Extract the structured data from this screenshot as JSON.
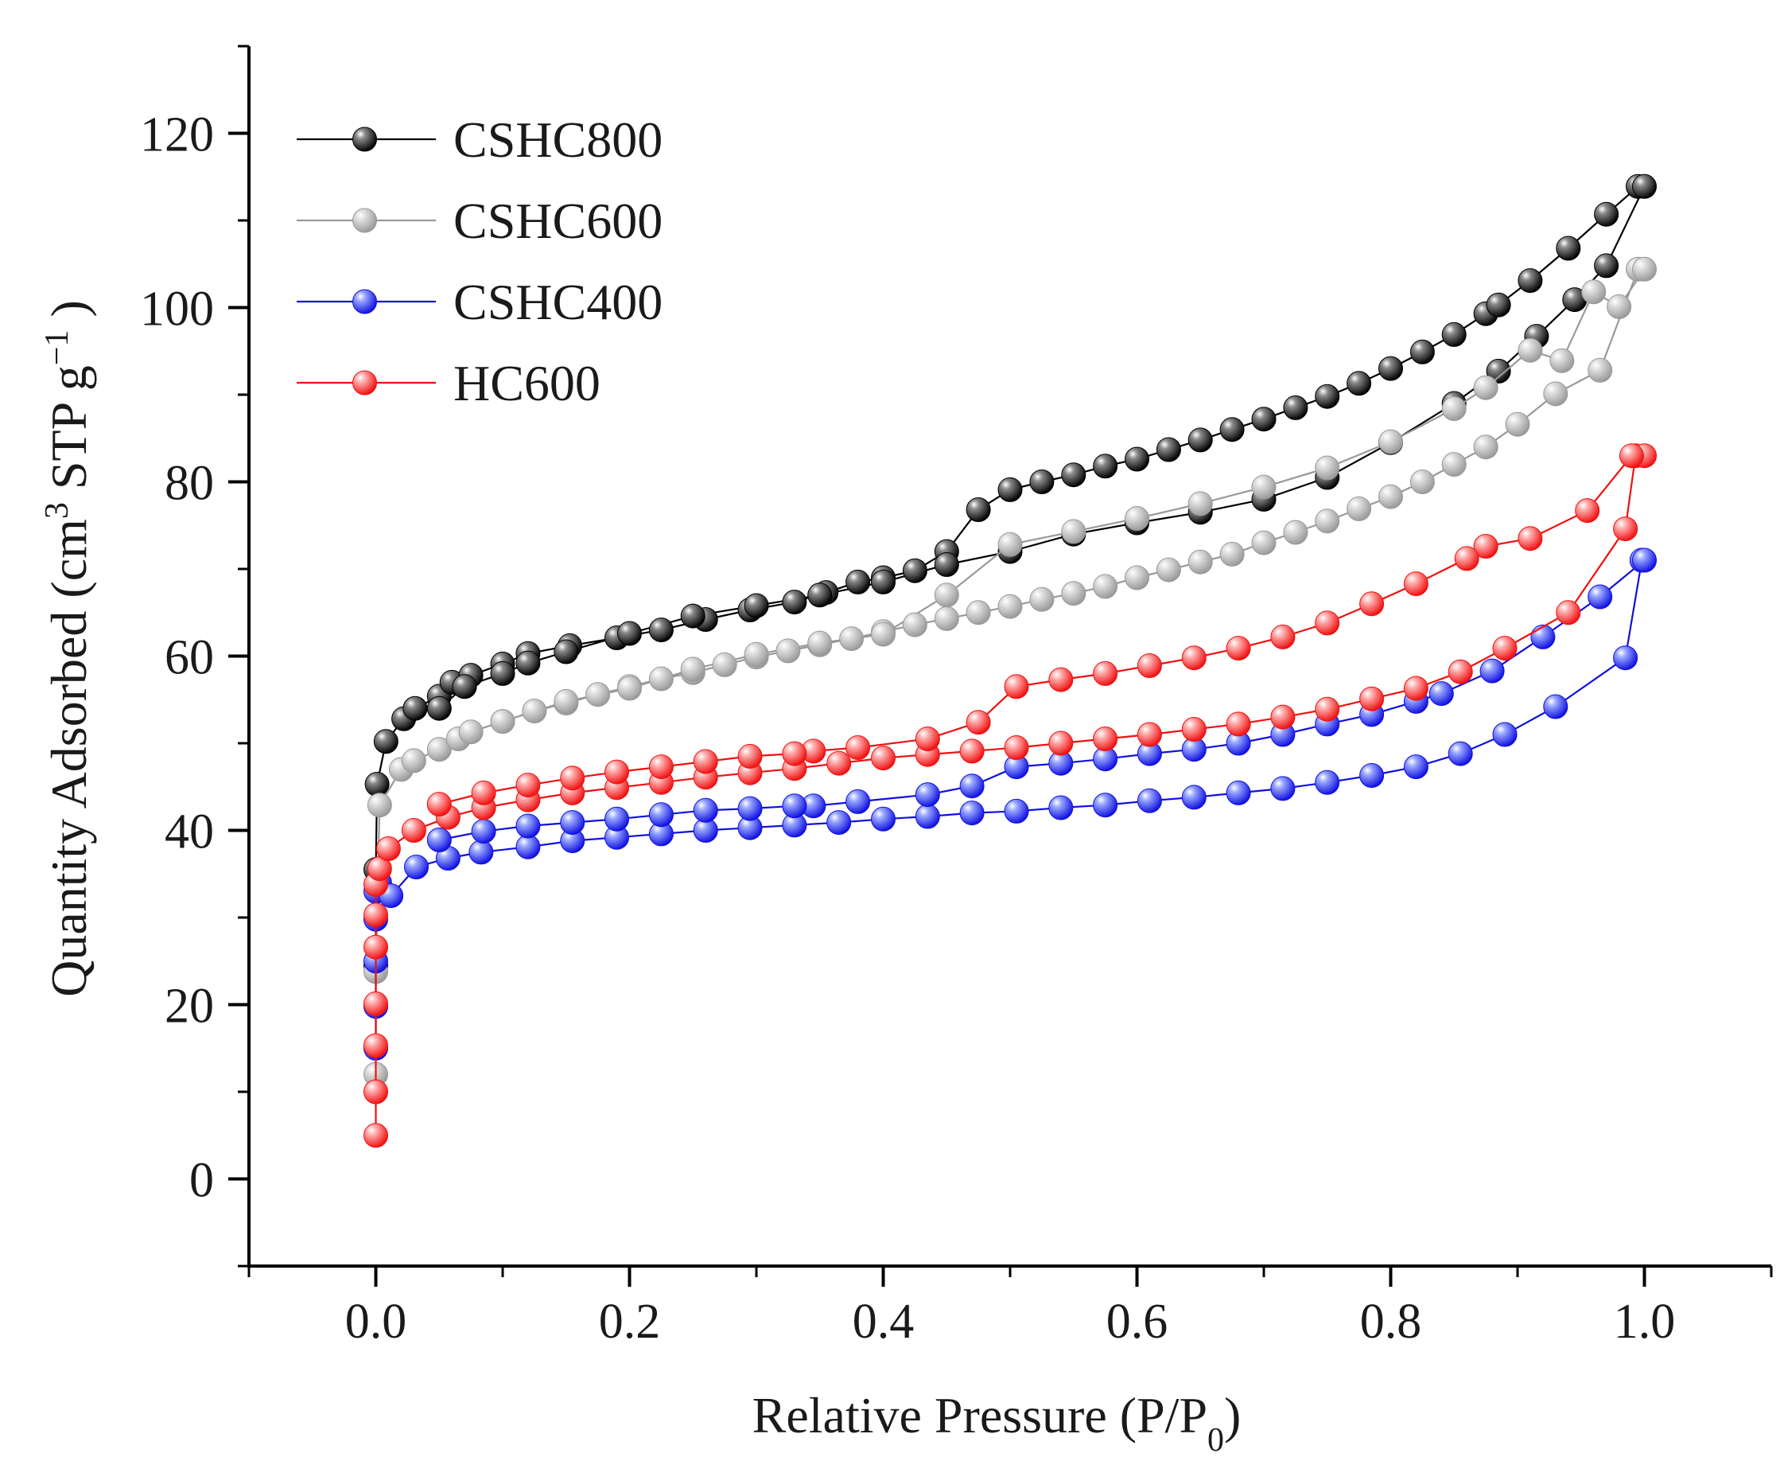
{
  "chart_data": {
    "type": "scatter",
    "title": "",
    "xlabel": "Relative Pressure (P/P0)",
    "xlabel_parts": {
      "main": "Relative Pressure (P/P",
      "sub": "0",
      "end": ")"
    },
    "ylabel": "Quantity Adsorbed (cm3 STP g-1)",
    "ylabel_parts": {
      "main": "Quantity Adsorbed (cm",
      "sup1": "3",
      "mid": " STP g",
      "sup2": "−1",
      "end": " )"
    },
    "xlim": [
      -0.1,
      1.1
    ],
    "ylim": [
      -10,
      130
    ],
    "xticks": [
      0.0,
      0.2,
      0.4,
      0.6,
      0.8,
      1.0
    ],
    "xtick_labels": [
      "0.0",
      "0.2",
      "0.4",
      "0.6",
      "0.8",
      "1.0"
    ],
    "yticks": [
      0,
      20,
      40,
      60,
      80,
      100,
      120
    ],
    "ytick_labels": [
      "0",
      "20",
      "40",
      "60",
      "80",
      "100",
      "120"
    ],
    "grid": false,
    "legend_position": "top-left",
    "series": [
      {
        "name": "CSHC800",
        "color": "#000000",
        "highlight": "#8a8a8a",
        "x": [
          0.0,
          0.0,
          0.001,
          0.008,
          0.022,
          0.031,
          0.05,
          0.06,
          0.075,
          0.1,
          0.12,
          0.153,
          0.19,
          0.225,
          0.26,
          0.295,
          0.33,
          0.355,
          0.38,
          0.4,
          0.425,
          0.45,
          0.475,
          0.5,
          0.525,
          0.55,
          0.575,
          0.6,
          0.625,
          0.65,
          0.675,
          0.7,
          0.725,
          0.75,
          0.775,
          0.8,
          0.825,
          0.85,
          0.875,
          0.885,
          0.91,
          0.94,
          0.97,
          0.995,
          1.0,
          0.97,
          0.945,
          0.915,
          0.885,
          0.85,
          0.8,
          0.75,
          0.7,
          0.65,
          0.6,
          0.55,
          0.5,
          0.45,
          0.4,
          0.35,
          0.3,
          0.25,
          0.2,
          0.15,
          0.12,
          0.1,
          0.07,
          0.05
        ],
        "values": [
          24.5,
          35.5,
          45.3,
          50.2,
          52.8,
          54.0,
          55.4,
          57.0,
          57.8,
          59.1,
          60.3,
          61.2,
          62.1,
          63.0,
          64.2,
          65.3,
          66.2,
          67.3,
          68.5,
          69.0,
          69.8,
          72.0,
          76.8,
          79.1,
          80.0,
          80.8,
          81.8,
          82.6,
          83.7,
          84.8,
          86.0,
          87.2,
          88.5,
          89.8,
          91.3,
          93.0,
          94.9,
          96.9,
          99.3,
          100.3,
          103.1,
          106.8,
          110.7,
          113.9,
          113.9,
          104.8,
          100.9,
          96.7,
          92.7,
          89.0,
          84.5,
          80.5,
          78.0,
          76.5,
          75.3,
          74.0,
          72.0,
          70.5,
          68.5,
          67.0,
          65.8,
          64.6,
          62.6,
          60.5,
          59.2,
          58.0,
          56.5,
          54.0
        ]
      },
      {
        "name": "CSHC600",
        "color": "#999999",
        "highlight": "#e0e0e0",
        "x": [
          0.0,
          0.0,
          0.003,
          0.02,
          0.03,
          0.05,
          0.065,
          0.075,
          0.1,
          0.125,
          0.15,
          0.175,
          0.2,
          0.225,
          0.25,
          0.275,
          0.3,
          0.325,
          0.35,
          0.375,
          0.4,
          0.425,
          0.45,
          0.475,
          0.5,
          0.525,
          0.55,
          0.575,
          0.6,
          0.625,
          0.65,
          0.675,
          0.7,
          0.725,
          0.75,
          0.775,
          0.8,
          0.825,
          0.85,
          0.875,
          0.9,
          0.93,
          0.965,
          0.995,
          1.0,
          0.98,
          0.96,
          0.935,
          0.91,
          0.875,
          0.85,
          0.8,
          0.75,
          0.7,
          0.65,
          0.6,
          0.55,
          0.5,
          0.45,
          0.4,
          0.35,
          0.3,
          0.25,
          0.2,
          0.15,
          0.1
        ],
        "values": [
          12.0,
          23.8,
          42.9,
          47.0,
          48.0,
          49.3,
          50.5,
          51.3,
          52.5,
          53.7,
          54.6,
          55.6,
          56.5,
          57.4,
          58.1,
          59.0,
          59.9,
          60.6,
          61.3,
          62.0,
          62.8,
          63.6,
          64.3,
          65.0,
          65.7,
          66.5,
          67.2,
          68.0,
          69.0,
          69.9,
          70.8,
          71.7,
          73.0,
          74.2,
          75.5,
          76.9,
          78.3,
          80.0,
          82.0,
          84.0,
          86.6,
          90.1,
          92.8,
          104.4,
          104.4,
          100.1,
          101.8,
          93.9,
          95.1,
          90.8,
          88.4,
          84.6,
          81.6,
          79.4,
          77.5,
          75.8,
          74.3,
          72.8,
          67.0,
          62.5,
          61.5,
          60.2,
          58.5,
          56.3,
          54.8,
          52.5
        ]
      },
      {
        "name": "CSHC400",
        "color": "#1010e0",
        "highlight": "#9aa8ff",
        "x": [
          0.0,
          0.0,
          0.0,
          0.0,
          0.0,
          0.003,
          0.012,
          0.032,
          0.057,
          0.083,
          0.12,
          0.155,
          0.19,
          0.225,
          0.26,
          0.295,
          0.33,
          0.365,
          0.4,
          0.435,
          0.47,
          0.505,
          0.54,
          0.575,
          0.61,
          0.645,
          0.68,
          0.715,
          0.75,
          0.785,
          0.82,
          0.855,
          0.89,
          0.93,
          0.985,
          0.998,
          1.0,
          0.965,
          0.92,
          0.88,
          0.84,
          0.82,
          0.785,
          0.75,
          0.715,
          0.68,
          0.645,
          0.61,
          0.575,
          0.54,
          0.505,
          0.47,
          0.435,
          0.38,
          0.345,
          0.33,
          0.295,
          0.26,
          0.225,
          0.19,
          0.155,
          0.12,
          0.085,
          0.05
        ],
        "values": [
          15.0,
          19.8,
          25.0,
          29.8,
          33.0,
          34.0,
          32.5,
          35.8,
          36.8,
          37.5,
          38.1,
          38.8,
          39.2,
          39.6,
          40.0,
          40.3,
          40.6,
          40.9,
          41.3,
          41.6,
          42.0,
          42.2,
          42.6,
          42.9,
          43.4,
          43.8,
          44.3,
          44.8,
          45.5,
          46.3,
          47.3,
          48.8,
          51.0,
          54.2,
          59.8,
          71.0,
          71.0,
          66.8,
          62.2,
          58.3,
          55.7,
          54.8,
          53.3,
          52.2,
          51.0,
          50.0,
          49.3,
          48.8,
          48.2,
          47.7,
          47.3,
          45.1,
          44.1,
          43.3,
          42.8,
          42.8,
          42.5,
          42.3,
          41.8,
          41.3,
          40.9,
          40.5,
          39.9,
          38.9
        ]
      },
      {
        "name": "HC600",
        "color": "#f01010",
        "highlight": "#ffb0b0",
        "x": [
          0.0,
          0.0,
          0.0,
          0.0,
          0.0,
          0.0,
          0.0,
          0.003,
          0.01,
          0.03,
          0.057,
          0.085,
          0.12,
          0.155,
          0.19,
          0.225,
          0.26,
          0.295,
          0.33,
          0.365,
          0.4,
          0.435,
          0.47,
          0.505,
          0.54,
          0.575,
          0.61,
          0.645,
          0.68,
          0.715,
          0.75,
          0.785,
          0.82,
          0.855,
          0.89,
          0.94,
          0.985,
          0.993,
          1.0,
          0.99,
          0.955,
          0.91,
          0.875,
          0.86,
          0.82,
          0.785,
          0.75,
          0.715,
          0.68,
          0.645,
          0.61,
          0.575,
          0.54,
          0.505,
          0.475,
          0.435,
          0.38,
          0.345,
          0.33,
          0.295,
          0.26,
          0.225,
          0.19,
          0.155,
          0.12,
          0.085,
          0.05
        ],
        "values": [
          5.0,
          10.0,
          15.3,
          20.1,
          26.6,
          30.3,
          33.8,
          35.6,
          37.9,
          40.0,
          41.5,
          42.6,
          43.5,
          44.3,
          44.9,
          45.5,
          46.1,
          46.6,
          47.1,
          47.7,
          48.3,
          48.7,
          49.1,
          49.5,
          50.0,
          50.5,
          51.0,
          51.6,
          52.2,
          53.0,
          53.9,
          55.1,
          56.3,
          58.2,
          60.9,
          65.0,
          74.6,
          83.0,
          83.0,
          83.0,
          76.7,
          73.5,
          72.6,
          71.2,
          68.3,
          66.0,
          63.8,
          62.2,
          60.9,
          59.8,
          58.9,
          58.0,
          57.3,
          56.5,
          52.4,
          50.5,
          49.5,
          49.1,
          48.8,
          48.5,
          47.9,
          47.3,
          46.7,
          46.0,
          45.2,
          44.3,
          43.0
        ]
      }
    ]
  }
}
